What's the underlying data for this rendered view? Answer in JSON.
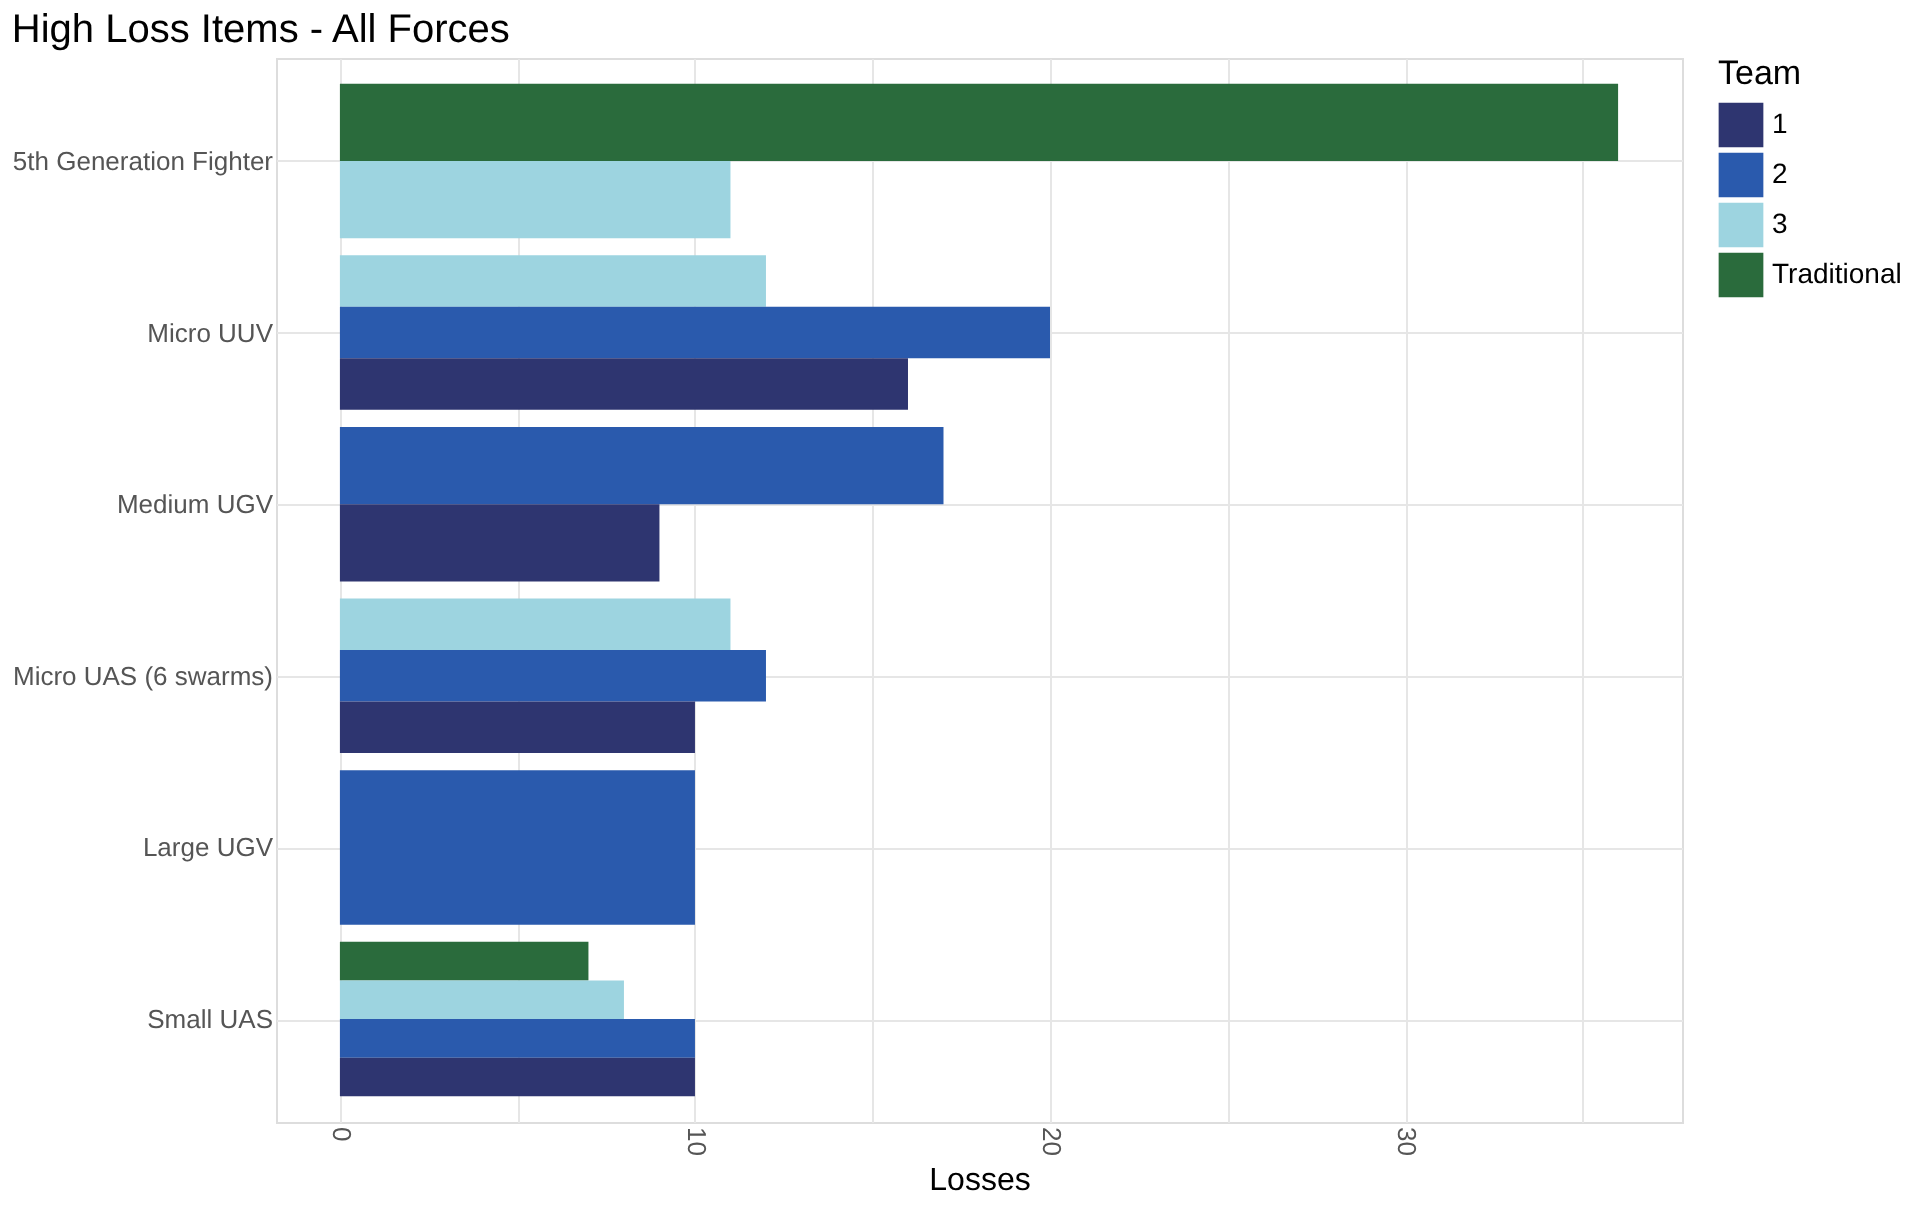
{
  "chart_data": {
    "type": "bar",
    "orientation": "horizontal",
    "title": "High Loss Items - All Forces",
    "xlabel": "Losses",
    "legend_title": "Team",
    "categories": [
      "5th Generation Fighter",
      "Micro UUV",
      "Medium UGV",
      "Micro UAS (6 swarms)",
      "Large UGV",
      "Small UAS"
    ],
    "series": [
      {
        "name": "1",
        "color": "#2e3570",
        "values": [
          null,
          16,
          9,
          10,
          null,
          10
        ]
      },
      {
        "name": "2",
        "color": "#2a5aad",
        "values": [
          null,
          20,
          17,
          12,
          10,
          10
        ]
      },
      {
        "name": "3",
        "color": "#9dd4e0",
        "values": [
          11,
          12,
          null,
          11,
          null,
          8
        ]
      },
      {
        "name": "Traditional",
        "color": "#2a6b3c",
        "values": [
          36,
          null,
          null,
          null,
          null,
          7
        ]
      }
    ],
    "xlim": [
      -1.8,
      37.8
    ],
    "xticks": [
      0,
      {
        "value": 5,
        "label": null
      },
      10,
      {
        "value": 15,
        "label": null
      },
      20,
      {
        "value": 25,
        "label": null
      },
      30,
      {
        "value": 35,
        "label": null
      }
    ],
    "grid": true,
    "legend": "right"
  }
}
